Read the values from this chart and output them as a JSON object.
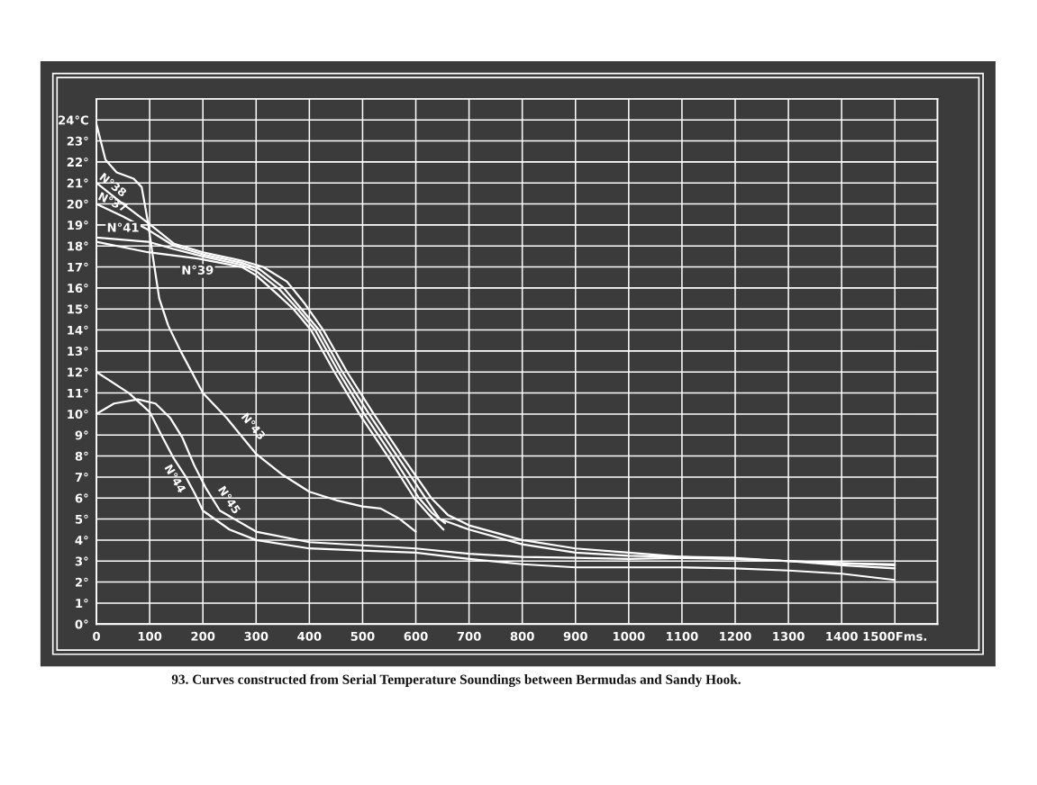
{
  "chart_data": {
    "type": "line",
    "title": "93. Curves constructed from Serial Temperature Soundings between Bermudas and Sandy Hook.",
    "xlim": [
      0,
      1580
    ],
    "ylim": [
      0,
      25
    ],
    "xticks": [
      0,
      100,
      200,
      300,
      400,
      500,
      600,
      700,
      800,
      900,
      1000,
      1100,
      1200,
      1300,
      1400,
      {
        "value": 1500,
        "label": "1500Fms."
      }
    ],
    "yticks": [
      {
        "value": 0,
        "label": "0°"
      },
      {
        "value": 1,
        "label": "1°"
      },
      {
        "value": 2,
        "label": "2°"
      },
      {
        "value": 3,
        "label": "3°"
      },
      {
        "value": 4,
        "label": "4°"
      },
      {
        "value": 5,
        "label": "5°"
      },
      {
        "value": 6,
        "label": "6°"
      },
      {
        "value": 7,
        "label": "7°"
      },
      {
        "value": 8,
        "label": "8°"
      },
      {
        "value": 9,
        "label": "9°"
      },
      {
        "value": 10,
        "label": "10°"
      },
      {
        "value": 11,
        "label": "11°"
      },
      {
        "value": 12,
        "label": "12°"
      },
      {
        "value": 13,
        "label": "13°"
      },
      {
        "value": 14,
        "label": "14°"
      },
      {
        "value": 15,
        "label": "15°"
      },
      {
        "value": 16,
        "label": "16°"
      },
      {
        "value": 17,
        "label": "17°"
      },
      {
        "value": 18,
        "label": "18°"
      },
      {
        "value": 19,
        "label": "19°"
      },
      {
        "value": 20,
        "label": "20°"
      },
      {
        "value": 21,
        "label": "21°"
      },
      {
        "value": 22,
        "label": "22°"
      },
      {
        "value": 23,
        "label": "23°"
      },
      {
        "value": 24,
        "label": "24°C"
      }
    ],
    "grid": true,
    "marker": "none",
    "line_style": "solid",
    "series": [
      {
        "name": "N°38",
        "color": "#ffffff",
        "x": [
          0,
          50,
          97,
          146,
          200,
          273,
          313,
          358,
          390,
          426,
          471,
          521,
          574,
          629,
          660,
          700,
          800,
          900,
          1000,
          1100,
          1200,
          1300,
          1400,
          1500
        ],
        "values": [
          21.0,
          20.0,
          19.1,
          18.1,
          17.7,
          17.3,
          17.0,
          16.3,
          15.3,
          14.0,
          12.0,
          10.0,
          8.0,
          6.0,
          5.2,
          4.7,
          4.0,
          3.6,
          3.4,
          3.2,
          3.15,
          3.0,
          2.9,
          2.85
        ]
      },
      {
        "name": "N°37",
        "color": "#ffffff",
        "x": [
          0,
          50,
          95,
          146,
          200,
          273,
          306,
          352,
          385,
          418,
          462,
          512,
          565,
          618,
          645,
          700,
          800,
          900,
          1000,
          1100,
          1200,
          1300,
          1400,
          1500
        ],
        "values": [
          20.0,
          19.4,
          18.8,
          18.0,
          17.6,
          17.2,
          16.9,
          16.0,
          15.0,
          14.0,
          12.0,
          10.0,
          8.0,
          6.0,
          5.0,
          4.5,
          3.8,
          3.4,
          3.25,
          3.2,
          3.1,
          3.0,
          2.8,
          2.65
        ]
      },
      {
        "name": "N°41",
        "color": "#ffffff",
        "x": [
          0,
          97,
          146,
          200,
          273,
          300,
          345,
          378,
          411,
          455,
          503,
          556,
          606,
          630,
          655
        ],
        "values": [
          18.4,
          18.2,
          17.85,
          17.5,
          17.1,
          16.8,
          15.9,
          15.0,
          14.0,
          12.0,
          10.0,
          8.0,
          6.0,
          5.3,
          4.8
        ]
      },
      {
        "name": "N°39",
        "color": "#ffffff",
        "x": [
          0,
          97,
          190,
          273,
          300,
          340,
          370,
          403,
          447,
          494,
          547,
          597,
          625,
          652
        ],
        "values": [
          18.2,
          17.7,
          17.4,
          17.0,
          16.6,
          15.7,
          15.0,
          14.0,
          12.0,
          10.0,
          8.0,
          6.0,
          5.2,
          4.5
        ]
      },
      {
        "name": "N°43",
        "color": "#ffffff",
        "x": [
          0,
          17,
          38,
          70,
          85,
          97,
          106,
          118,
          135,
          158,
          200,
          245,
          300,
          350,
          400,
          450,
          500,
          534,
          570,
          600
        ],
        "values": [
          23.8,
          22.1,
          21.5,
          21.2,
          20.8,
          19.1,
          17.5,
          15.5,
          14.2,
          13.0,
          11.0,
          9.8,
          8.1,
          7.1,
          6.3,
          5.9,
          5.6,
          5.5,
          5.0,
          4.4
        ]
      },
      {
        "name": "N°44",
        "color": "#ffffff",
        "x": [
          0,
          61,
          100,
          122,
          145,
          168,
          185,
          200,
          250,
          300,
          400,
          500,
          600,
          700,
          800,
          900,
          1000,
          1100,
          1200,
          1300,
          1400,
          1500
        ],
        "values": [
          12.0,
          11.0,
          10.1,
          9.0,
          7.9,
          7.0,
          6.2,
          5.4,
          4.5,
          4.0,
          3.6,
          3.5,
          3.4,
          3.1,
          2.85,
          2.7,
          2.7,
          2.7,
          2.65,
          2.55,
          2.4,
          2.1
        ]
      },
      {
        "name": "N°45",
        "color": "#ffffff",
        "x": [
          0,
          33,
          78,
          111,
          139,
          161,
          183,
          205,
          232,
          300,
          400,
          500,
          600,
          700,
          800,
          900,
          1000,
          1100,
          1200,
          1300,
          1400,
          1500
        ],
        "values": [
          10.0,
          10.5,
          10.7,
          10.5,
          9.8,
          8.9,
          7.6,
          6.5,
          5.4,
          4.4,
          3.9,
          3.75,
          3.6,
          3.35,
          3.2,
          3.15,
          3.1,
          3.15,
          3.1,
          3.0,
          2.9,
          2.8
        ]
      }
    ]
  }
}
